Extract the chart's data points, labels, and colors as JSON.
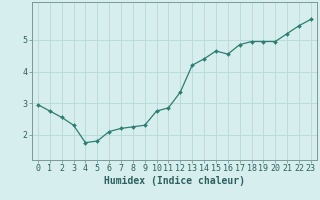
{
  "x": [
    0,
    1,
    2,
    3,
    4,
    5,
    6,
    7,
    8,
    9,
    10,
    11,
    12,
    13,
    14,
    15,
    16,
    17,
    18,
    19,
    20,
    21,
    22,
    23
  ],
  "y": [
    2.95,
    2.75,
    2.55,
    2.3,
    1.75,
    1.8,
    2.1,
    2.2,
    2.25,
    2.3,
    2.75,
    2.85,
    3.35,
    4.2,
    4.4,
    4.65,
    4.55,
    4.85,
    4.95,
    4.95,
    4.95,
    5.2,
    5.45,
    5.65
  ],
  "xlabel": "Humidex (Indice chaleur)",
  "ylim": [
    1.2,
    6.2
  ],
  "xlim": [
    -0.5,
    23.5
  ],
  "yticks": [
    2,
    3,
    4,
    5
  ],
  "xticks": [
    0,
    1,
    2,
    3,
    4,
    5,
    6,
    7,
    8,
    9,
    10,
    11,
    12,
    13,
    14,
    15,
    16,
    17,
    18,
    19,
    20,
    21,
    22,
    23
  ],
  "line_color": "#2e7d72",
  "marker": "D",
  "marker_size": 2.0,
  "bg_color": "#d6eeee",
  "grid_color": "#b8d8d8",
  "axis_color": "#7a9a9a",
  "xlabel_fontsize": 7,
  "tick_fontsize": 6,
  "xlabel_color": "#2e5f5f",
  "tick_color": "#2e5f5f",
  "line_width": 0.9
}
